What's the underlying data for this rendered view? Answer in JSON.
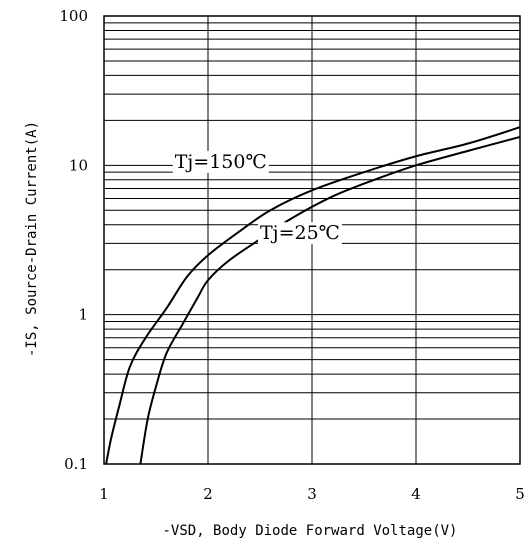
{
  "chart_data": {
    "type": "line",
    "xlabel": "-VSD, Body Diode Forward Voltage(V)",
    "ylabel": "-IS, Source-Drain Current(A)",
    "xlim": [
      1,
      5
    ],
    "ylim": [
      0.1,
      100
    ],
    "yscale": "log",
    "grid": true,
    "x_ticks": [
      "1",
      "2",
      "3",
      "4",
      "5"
    ],
    "y_ticks": [
      "0.1",
      "1",
      "10",
      "100"
    ],
    "series": [
      {
        "name": "Tj=150℃",
        "x": [
          1.02,
          1.07,
          1.15,
          1.25,
          1.4,
          1.6,
          1.8,
          2.0,
          2.3,
          2.6,
          3.0,
          3.5,
          4.0,
          4.5,
          5.0
        ],
        "y": [
          0.1,
          0.15,
          0.25,
          0.45,
          0.7,
          1.1,
          1.8,
          2.5,
          3.6,
          5.0,
          6.8,
          9.0,
          11.5,
          14.0,
          18.0
        ]
      },
      {
        "name": "Tj=25℃",
        "x": [
          1.35,
          1.42,
          1.5,
          1.6,
          1.75,
          1.9,
          2.0,
          2.2,
          2.5,
          2.8,
          3.2,
          3.6,
          4.0,
          4.5,
          5.0
        ],
        "y": [
          0.1,
          0.2,
          0.33,
          0.55,
          0.85,
          1.3,
          1.7,
          2.3,
          3.2,
          4.4,
          6.2,
          8.0,
          10.0,
          12.5,
          15.5
        ]
      }
    ],
    "annotations": [
      {
        "text": "Tj=150℃",
        "x": 1.68,
        "y": 9.6
      },
      {
        "text": "Tj=25℃",
        "x": 2.5,
        "y": 3.2
      }
    ]
  }
}
